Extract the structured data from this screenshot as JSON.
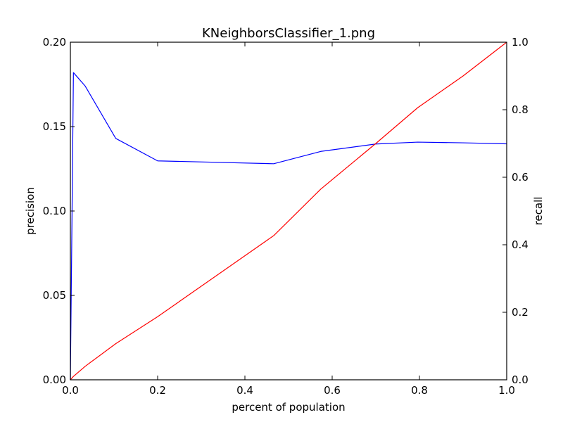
{
  "chart_data": {
    "type": "line",
    "title": "KNeighborsClassifier_1.png",
    "xlabel": "percent of population",
    "xlim": [
      0.0,
      1.0
    ],
    "x_ticks": [
      "0.0",
      "0.2",
      "0.4",
      "0.6",
      "0.8",
      "1.0"
    ],
    "y_left": {
      "label": "precision",
      "color": "#0000ff",
      "ylim": [
        0.0,
        0.2
      ],
      "ticks": [
        "0.00",
        "0.05",
        "0.10",
        "0.15",
        "0.20"
      ]
    },
    "y_right": {
      "label": "recall",
      "color": "#ff0000",
      "ylim": [
        0.0,
        1.0
      ],
      "ticks": [
        "0.0",
        "0.2",
        "0.4",
        "0.6",
        "0.8",
        "1.0"
      ]
    },
    "grid": false,
    "series": [
      {
        "axis": "left",
        "color": "#0000ff",
        "x": [
          0.0,
          0.007,
          0.034,
          0.104,
          0.2,
          0.466,
          0.574,
          0.7,
          0.796,
          0.9,
          1.0
        ],
        "y": [
          0.0,
          0.182,
          0.174,
          0.143,
          0.1297,
          0.128,
          0.1353,
          0.1397,
          0.1408,
          0.1404,
          0.1398
        ]
      },
      {
        "axis": "right",
        "color": "#ff0000",
        "x": [
          0.0,
          0.007,
          0.034,
          0.104,
          0.2,
          0.466,
          0.574,
          0.7,
          0.796,
          0.9,
          1.0
        ],
        "y": [
          0.0,
          0.01,
          0.04,
          0.107,
          0.187,
          0.427,
          0.565,
          0.7,
          0.806,
          0.9,
          1.0
        ]
      }
    ]
  }
}
